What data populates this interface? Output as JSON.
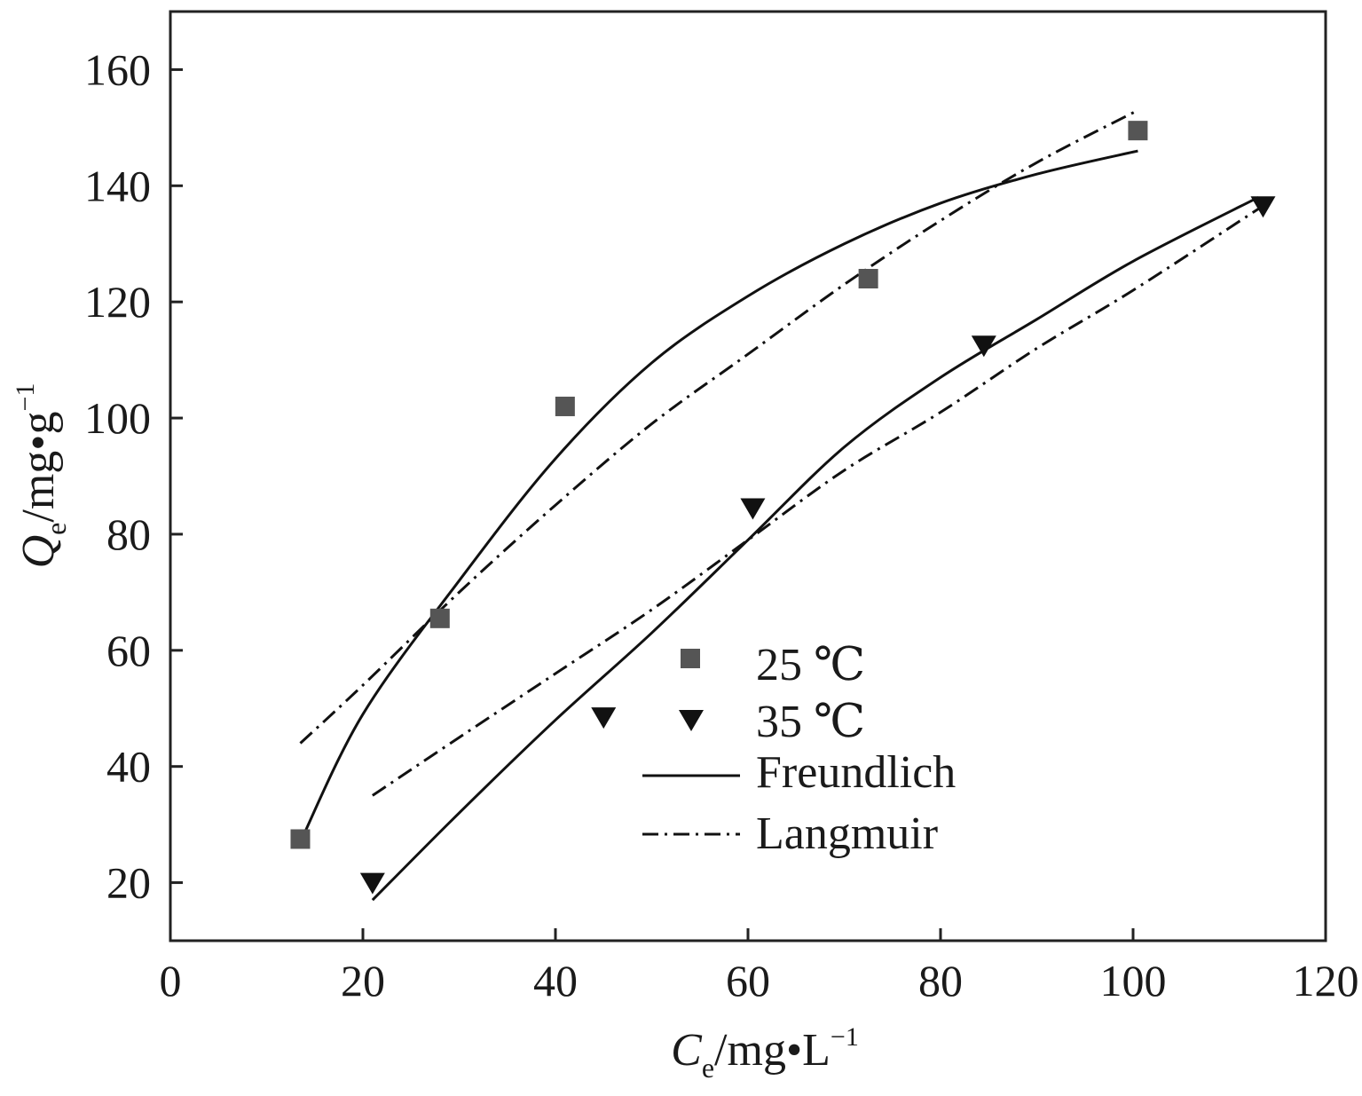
{
  "chart_data": {
    "type": "scatter",
    "xlabel": {
      "sym": "C",
      "sub": "e",
      "unit": "/mg•L",
      "sup": "−1"
    },
    "ylabel": {
      "sym": "Q",
      "sub": "e",
      "unit": "/mg•g",
      "sup": "−1"
    },
    "xlim": [
      0,
      120
    ],
    "ylim": [
      10,
      170
    ],
    "xticks": [
      0,
      20,
      40,
      60,
      80,
      100,
      120
    ],
    "yticks": [
      20,
      40,
      60,
      80,
      100,
      120,
      140,
      160
    ],
    "grid": false,
    "legend_position": "bottom-center",
    "legend": [
      {
        "label": "25 ℃",
        "kind": "marker",
        "marker": "square"
      },
      {
        "label": "35 ℃",
        "kind": "marker",
        "marker": "triangle-down"
      },
      {
        "label": "Freundlich",
        "kind": "line",
        "dash": "solid"
      },
      {
        "label": "Langmuir",
        "kind": "line",
        "dash": "dashdot"
      }
    ],
    "series": [
      {
        "name": "25 ℃",
        "marker": "square",
        "color": "#555555",
        "x": [
          13.5,
          28,
          41,
          72.5,
          100.5
        ],
        "y": [
          27.5,
          65.5,
          102,
          124,
          149.5
        ]
      },
      {
        "name": "35 ℃",
        "marker": "triangle-down",
        "color": "#111111",
        "x": [
          21,
          45,
          60.5,
          84.5,
          113.5
        ],
        "y": [
          20,
          48.5,
          84.5,
          112.5,
          136.5
        ]
      }
    ],
    "fits": [
      {
        "name": "Freundlich",
        "of": "25 ℃",
        "dash": "solid",
        "x": [
          13.5,
          20,
          30,
          40,
          50,
          60,
          70,
          80,
          90,
          100.5
        ],
        "y": [
          27,
          49,
          72,
          93,
          109.5,
          121,
          130,
          137,
          142,
          146
        ]
      },
      {
        "name": "Langmuir",
        "of": "25 ℃",
        "dash": "dashdot",
        "x": [
          13.5,
          20,
          30,
          40,
          50,
          60,
          70,
          80,
          90,
          100.5
        ],
        "y": [
          44,
          54,
          70,
          85,
          99,
          111,
          123,
          134,
          144,
          153
        ]
      },
      {
        "name": "Freundlich",
        "of": "35 ℃",
        "dash": "solid",
        "x": [
          21,
          30,
          40,
          50,
          60,
          70,
          80,
          90,
          100,
          113
        ],
        "y": [
          17,
          32,
          48,
          63,
          79,
          95,
          107,
          117,
          127,
          138
        ]
      },
      {
        "name": "Langmuir",
        "of": "35 ℃",
        "dash": "dashdot",
        "x": [
          21,
          30,
          40,
          50,
          60,
          70,
          80,
          90,
          100,
          113
        ],
        "y": [
          35,
          45,
          56,
          67,
          79,
          91,
          101,
          112,
          122,
          136
        ]
      }
    ]
  }
}
